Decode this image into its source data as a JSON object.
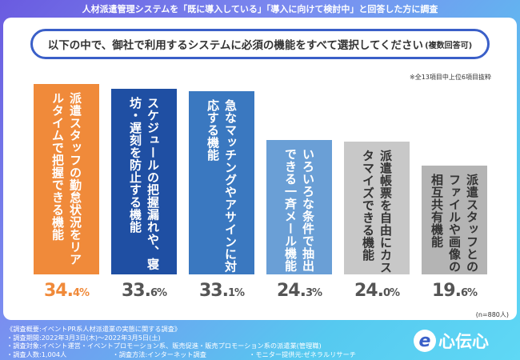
{
  "headline": "人材派遣管理システムを「既に導入している」「導入に向けて検討中」と回答した方に調査",
  "question": {
    "text": "以下の中で、御社で利用するシステムに必須の機能をすべて選択してください",
    "suffix": "(複数回答可)"
  },
  "note_top": "※全13項目中上位6項目抜粋",
  "note_n": "(n=880人)",
  "chart_data": {
    "type": "bar",
    "categories": [
      "派遣スタッフの勤怠状況をリアルタイムで把握できる機能",
      "スケジュールの把握漏れや、寝坊・遅刻を防止する機能",
      "急なマッチングやアサインに対応する機能",
      "いろいろな条件で抽出できる一斉メール機能",
      "派遣帳票を自由にカスタマイズできる機能",
      "派遣スタッフとのファイルや画像の相互共有機能"
    ],
    "values": [
      34.4,
      33.6,
      33.1,
      24.3,
      24.0,
      19.6
    ],
    "value_labels": [
      {
        "main": "34.",
        "frac": "4%"
      },
      {
        "main": "33.",
        "frac": "6%"
      },
      {
        "main": "33.",
        "frac": "1%"
      },
      {
        "main": "24.",
        "frac": "3%"
      },
      {
        "main": "24.",
        "frac": "0%"
      },
      {
        "main": "19.",
        "frac": "6%"
      }
    ],
    "colors": [
      "#f08a3a",
      "#1f4fa3",
      "#3a78c0",
      "#6a9fd6",
      "#c8c8c8",
      "#b4b4b4"
    ],
    "value_colors": [
      "#f08a3a",
      "#555555",
      "#555555",
      "#555555",
      "#555555",
      "#555555"
    ],
    "ylim": [
      0,
      34.4
    ]
  },
  "footer": {
    "title": "《調査概要:イベントPR系人材派遣業の実態に関する調査》",
    "period": "・調査期間:2022年3月3日(木)〜2022年3月5日(土)",
    "target": "・調査対象:イベント運営・イベントプロモーション系、販売促進・販売プロモーション系の派遣業(管理職)",
    "count": "・調査人数:1,004人",
    "method": "・調査方法:インターネット調査",
    "provider": "・モニター提供元:ゼネラルリサーチ"
  },
  "logo": {
    "mark": "e",
    "text": "心伝心"
  }
}
